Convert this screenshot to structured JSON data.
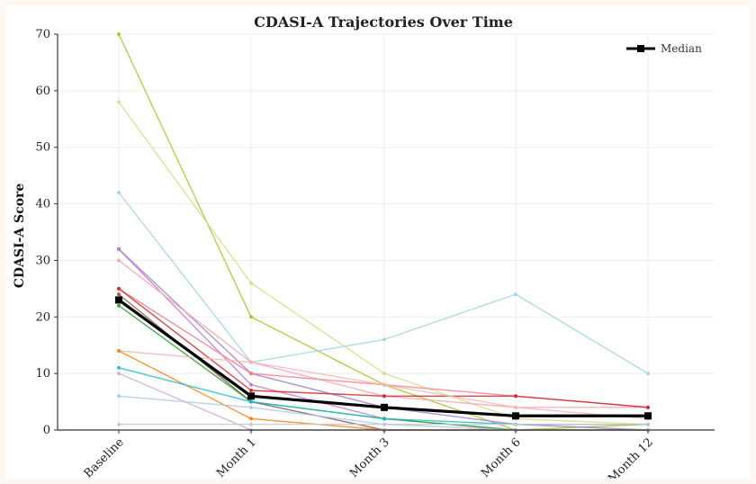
{
  "chart_data": {
    "type": "line",
    "title": "CDASI-A Trajectories Over Time",
    "xlabel": "",
    "ylabel": "CDASI-A Score",
    "categories": [
      "Baseline",
      "Month 1",
      "Month 3",
      "Month 6",
      "Month 12"
    ],
    "ylim": [
      0,
      70
    ],
    "yticks": [
      0,
      10,
      20,
      30,
      40,
      50,
      60,
      70
    ],
    "grid": true,
    "legend": {
      "position": "top-right",
      "entries": [
        "Median"
      ]
    },
    "series": [
      {
        "name": "",
        "color": "#b5bd2a",
        "values": [
          70,
          20,
          8,
          0,
          1
        ]
      },
      {
        "name": "",
        "color": "#d9da8a",
        "values": [
          58,
          26,
          10,
          2,
          1
        ]
      },
      {
        "name": "",
        "color": "#9fd6e3",
        "values": [
          42,
          12,
          16,
          24,
          10
        ]
      },
      {
        "name": "",
        "color": "#c77ac4",
        "values": [
          32,
          8,
          2,
          0,
          0
        ]
      },
      {
        "name": "",
        "color": "#a57ccf",
        "values": [
          32,
          10,
          4,
          1,
          0
        ]
      },
      {
        "name": "",
        "color": "#f2a6b6",
        "values": [
          30,
          12,
          6,
          4,
          4
        ]
      },
      {
        "name": "",
        "color": "#f07f8c",
        "values": [
          25,
          10,
          8,
          6,
          4
        ]
      },
      {
        "name": "",
        "color": "#d62728",
        "values": [
          25,
          7,
          6,
          6,
          4
        ]
      },
      {
        "name": "",
        "color": "#8c564b",
        "values": [
          24,
          5,
          0,
          0,
          0
        ]
      },
      {
        "name": "",
        "color": "#2ca02c",
        "values": [
          22,
          5,
          2,
          0,
          0
        ]
      },
      {
        "name": "",
        "color": "#f4b6b0",
        "values": [
          14,
          12,
          8,
          4,
          2
        ]
      },
      {
        "name": "",
        "color": "#ff7f0e",
        "values": [
          14,
          2,
          0,
          0,
          0
        ]
      },
      {
        "name": "",
        "color": "#17becf",
        "values": [
          11,
          5,
          2,
          1,
          1
        ]
      },
      {
        "name": "",
        "color": "#c5b0d5",
        "values": [
          10,
          0,
          0,
          0,
          0
        ]
      },
      {
        "name": "",
        "color": "#aec7e8",
        "values": [
          6,
          4,
          1,
          0,
          0
        ]
      },
      {
        "name": "",
        "color": "#c7c7c7",
        "values": [
          1,
          1,
          1,
          1,
          1
        ]
      },
      {
        "name": "Median",
        "color": "#000000",
        "values": [
          23,
          6,
          4,
          2.5,
          2.5
        ],
        "median": true
      }
    ]
  }
}
